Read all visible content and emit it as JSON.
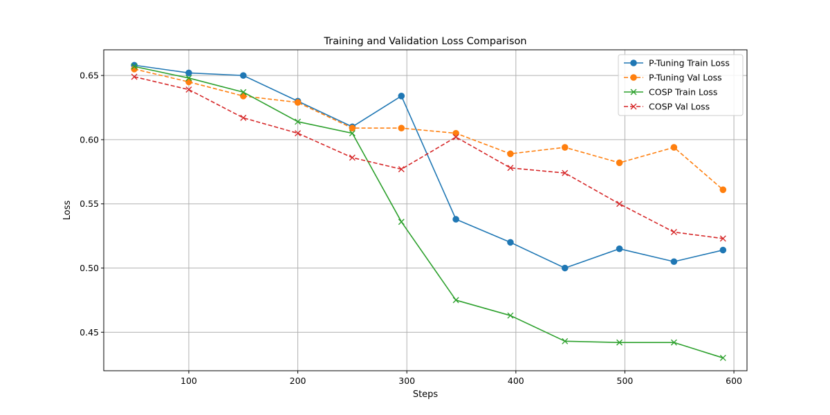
{
  "chart_data": {
    "type": "line",
    "title": "Training and Validation Loss Comparison",
    "xlabel": "Steps",
    "ylabel": "Loss",
    "xlim": [
      22,
      612
    ],
    "ylim": [
      0.42,
      0.67
    ],
    "xticks": [
      100,
      200,
      300,
      400,
      500,
      600
    ],
    "yticks": [
      0.45,
      0.5,
      0.55,
      0.6,
      0.65
    ],
    "xtick_labels": [
      "100",
      "200",
      "300",
      "400",
      "500",
      "600"
    ],
    "ytick_labels": [
      "0.45",
      "0.50",
      "0.55",
      "0.60",
      "0.65"
    ],
    "grid": true,
    "legend_position": "top-right",
    "series": [
      {
        "name": "P-Tuning Train Loss",
        "color": "#1f77b4",
        "linestyle": "solid",
        "marker": "circle",
        "x": [
          50,
          100,
          150,
          200,
          250,
          295,
          345,
          395,
          445,
          495,
          545,
          590
        ],
        "y": [
          0.658,
          0.652,
          0.65,
          0.63,
          0.61,
          0.634,
          0.538,
          0.52,
          0.5,
          0.515,
          0.505,
          0.514
        ]
      },
      {
        "name": "P-Tuning Val Loss",
        "color": "#ff7f0e",
        "linestyle": "dashed",
        "marker": "circle",
        "x": [
          50,
          100,
          150,
          200,
          250,
          295,
          345,
          395,
          445,
          495,
          545,
          590
        ],
        "y": [
          0.655,
          0.645,
          0.634,
          0.629,
          0.609,
          0.609,
          0.605,
          0.589,
          0.594,
          0.582,
          0.594,
          0.561
        ]
      },
      {
        "name": "COSP Train Loss",
        "color": "#2ca02c",
        "linestyle": "solid",
        "marker": "x",
        "x": [
          50,
          100,
          150,
          200,
          250,
          295,
          345,
          395,
          445,
          495,
          545,
          590
        ],
        "y": [
          0.657,
          0.648,
          0.637,
          0.614,
          0.605,
          0.536,
          0.475,
          0.463,
          0.443,
          0.442,
          0.442,
          0.43
        ]
      },
      {
        "name": "COSP Val Loss",
        "color": "#d62728",
        "linestyle": "dashed",
        "marker": "x",
        "x": [
          50,
          100,
          150,
          200,
          250,
          295,
          345,
          395,
          445,
          495,
          545,
          590
        ],
        "y": [
          0.649,
          0.639,
          0.617,
          0.605,
          0.586,
          0.577,
          0.602,
          0.578,
          0.574,
          0.55,
          0.528,
          0.523
        ]
      }
    ]
  }
}
